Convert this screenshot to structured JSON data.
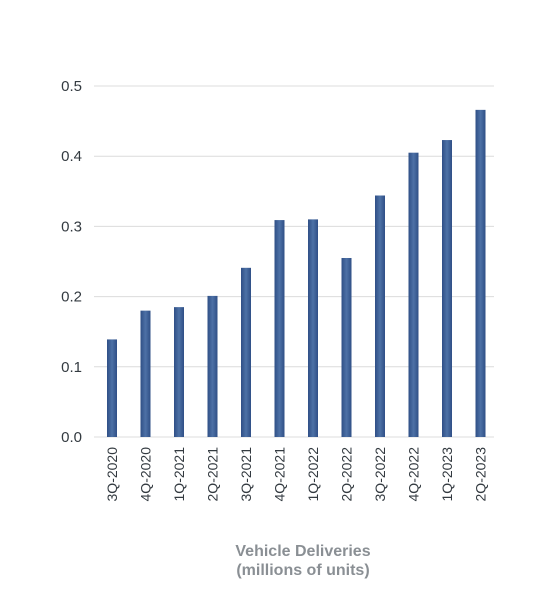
{
  "chart_data": {
    "type": "bar",
    "categories": [
      "3Q-2020",
      "4Q-2020",
      "1Q-2021",
      "2Q-2021",
      "3Q-2021",
      "4Q-2021",
      "1Q-2022",
      "2Q-2022",
      "3Q-2022",
      "4Q-2022",
      "1Q-2023",
      "2Q-2023"
    ],
    "values": [
      0.139,
      0.18,
      0.185,
      0.201,
      0.241,
      0.309,
      0.31,
      0.255,
      0.344,
      0.405,
      0.423,
      0.466
    ],
    "title": "",
    "xlabel": "",
    "ylabel": "",
    "caption_line1": "Vehicle Deliveries",
    "caption_line2": "(millions of units)",
    "ylim": [
      0,
      0.5
    ],
    "yticks": [
      "0.0",
      "0.1",
      "0.2",
      "0.3",
      "0.4",
      "0.5"
    ],
    "grid": true,
    "colors": {
      "bar_edge": "#2f4f86",
      "bar_center": "#4d71a6",
      "grid": "#dcdcdc",
      "text": "#333a40",
      "caption": "#8a8f94"
    }
  }
}
